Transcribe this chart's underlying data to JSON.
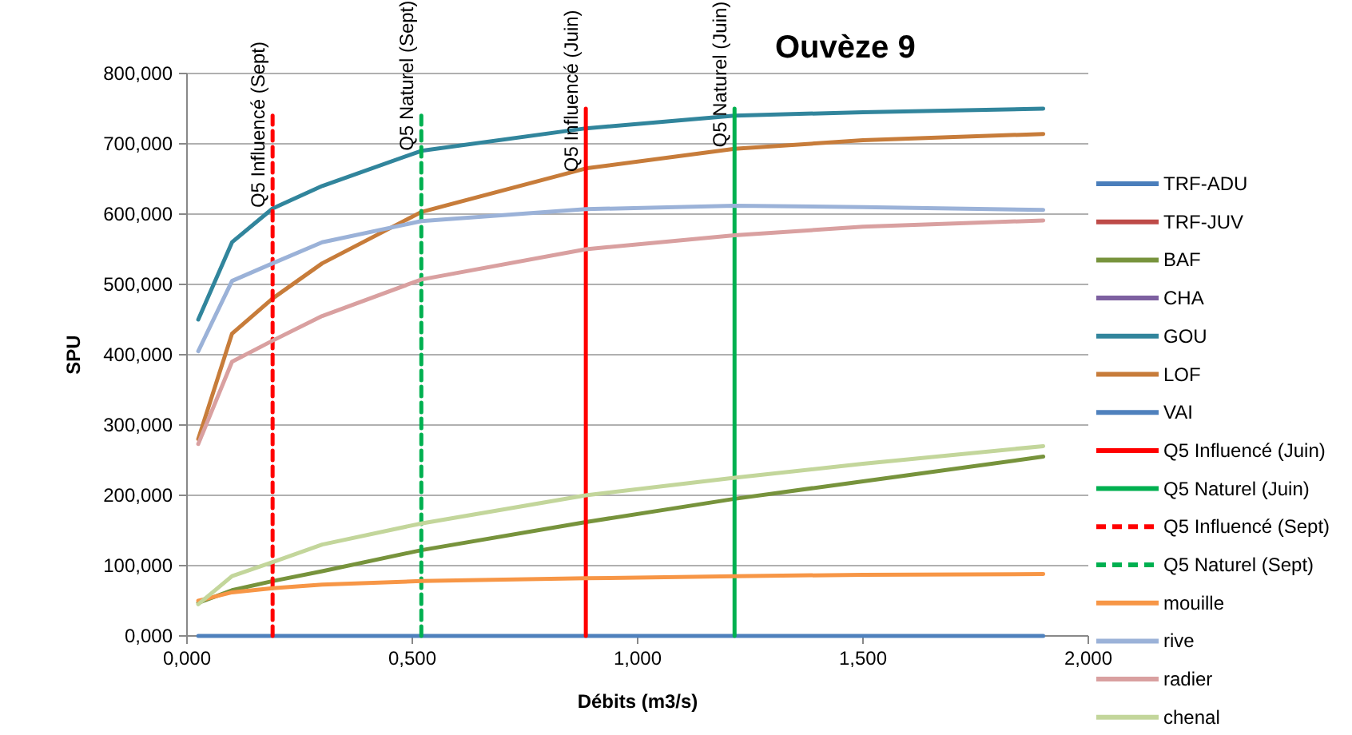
{
  "chart_data": {
    "type": "line",
    "title": "Ouvèze 9",
    "xlabel": "Débits (m3/s)",
    "ylabel": "SPU",
    "xlim": [
      0,
      2
    ],
    "xticks": [
      {
        "value": 0,
        "label": "0,000"
      },
      {
        "value": 0.5,
        "label": "0,500"
      },
      {
        "value": 1,
        "label": "1,000"
      },
      {
        "value": 1.5,
        "label": "1,500"
      },
      {
        "value": 2,
        "label": "2,000"
      }
    ],
    "ylim": [
      0,
      800
    ],
    "yticks": [
      {
        "value": 0,
        "label": "0,000"
      },
      {
        "value": 100,
        "label": "100,000"
      },
      {
        "value": 200,
        "label": "200,000"
      },
      {
        "value": 300,
        "label": "300,000"
      },
      {
        "value": 400,
        "label": "400,000"
      },
      {
        "value": 500,
        "label": "500,000"
      },
      {
        "value": 600,
        "label": "600,000"
      },
      {
        "value": 700,
        "label": "700,000"
      },
      {
        "value": 800,
        "label": "800,000"
      }
    ],
    "grid": "y",
    "legend": "right",
    "marker": "none",
    "line_style": "solid",
    "x": [
      0.025,
      0.1,
      0.19,
      0.3,
      0.52,
      0.885,
      1.215,
      1.5,
      1.9
    ],
    "series": [
      {
        "name": "TRF-ADU",
        "color": "#4a7ebb",
        "values": [
          null,
          null,
          null,
          null,
          null,
          null,
          null,
          null,
          null
        ]
      },
      {
        "name": "TRF-JUV",
        "color": "#be4b48",
        "values": [
          null,
          null,
          null,
          null,
          null,
          null,
          null,
          null,
          null
        ]
      },
      {
        "name": "BAF",
        "color": "#77933c",
        "values": [
          47,
          65,
          78,
          92,
          122,
          162,
          195,
          220,
          255
        ]
      },
      {
        "name": "CHA",
        "color": "#7d60a0",
        "values": [
          null,
          null,
          null,
          null,
          null,
          null,
          null,
          null,
          null
        ]
      },
      {
        "name": "GOU",
        "color": "#31859c",
        "values": [
          450,
          560,
          608,
          640,
          690,
          722,
          740,
          745,
          750
        ]
      },
      {
        "name": "LOF",
        "color": "#c77c3a",
        "values": [
          280,
          430,
          480,
          530,
          603,
          665,
          693,
          705,
          714
        ]
      },
      {
        "name": "VAI",
        "color": "#4f81bd",
        "values": [
          0,
          0,
          0,
          0,
          0,
          0,
          0,
          0,
          0
        ]
      },
      {
        "name": "Q5 Influencé (Juin)",
        "color": "#ff0000",
        "x": [
          0.885,
          0.885
        ],
        "values": [
          0,
          750
        ]
      },
      {
        "name": "Q5 Naturel (Juin)",
        "color": "#00b050",
        "x": [
          1.215,
          1.215
        ],
        "values": [
          0,
          750
        ]
      },
      {
        "name": "Q5 Influencé (Sept)",
        "color": "#ff0000",
        "line_style": "dashed",
        "x": [
          0.19,
          0.19
        ],
        "values": [
          0,
          740
        ]
      },
      {
        "name": "Q5 Naturel (Sept)",
        "color": "#00b050",
        "line_style": "dashed",
        "x": [
          0.52,
          0.52
        ],
        "values": [
          0,
          740
        ]
      },
      {
        "name": "mouille",
        "color": "#f79646",
        "values": [
          50,
          62,
          68,
          73,
          78,
          82,
          85,
          87,
          88
        ]
      },
      {
        "name": "rive",
        "color": "#9bb2d8",
        "values": [
          405,
          505,
          530,
          560,
          590,
          607,
          612,
          610,
          606
        ]
      },
      {
        "name": "radier",
        "color": "#d9a0a0",
        "values": [
          273,
          390,
          420,
          455,
          507,
          550,
          570,
          582,
          591
        ]
      },
      {
        "name": "chenal",
        "color": "#c3d69b",
        "values": [
          45,
          85,
          105,
          130,
          160,
          200,
          225,
          245,
          270
        ]
      }
    ],
    "annotations": [
      {
        "text": "Q5 Influencé (Sept)",
        "x": 0.19,
        "y": 609
      },
      {
        "text": "Q5 Naturel (Sept)",
        "x": 0.52,
        "y": 690
      },
      {
        "text": "Q5 Influencé (Juin)",
        "x": 0.885,
        "y": 660
      },
      {
        "text": "Q5 Naturel (Juin)",
        "x": 1.215,
        "y": 695
      }
    ]
  }
}
